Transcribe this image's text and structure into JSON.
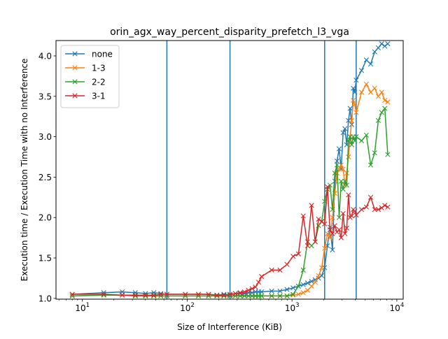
{
  "chart_data": {
    "type": "line",
    "title": "orin_agx_way_percent_disparity_prefetch_l3_vga",
    "xlabel": "Size of Interference (KiB)",
    "ylabel": "Execution time / Execution Time with no Interference",
    "xscale": "log",
    "xlim": [
      5.6,
      11500
    ],
    "ylim": [
      0.99,
      4.19
    ],
    "xticks": [
      {
        "value": 10,
        "base": "10",
        "exp": "1"
      },
      {
        "value": 100,
        "base": "10",
        "exp": "2"
      },
      {
        "value": 1000,
        "base": "10",
        "exp": "3"
      },
      {
        "value": 10000,
        "base": "10",
        "exp": "4"
      }
    ],
    "yticks": [
      {
        "value": 1.0,
        "label": "1.0"
      },
      {
        "value": 1.5,
        "label": "1.5"
      },
      {
        "value": 2.0,
        "label": "2.0"
      },
      {
        "value": 2.5,
        "label": "2.5"
      },
      {
        "value": 3.0,
        "label": "3.0"
      },
      {
        "value": 3.5,
        "label": "3.5"
      },
      {
        "value": 4.0,
        "label": "4.0"
      }
    ],
    "vlines": [
      64,
      256,
      2048,
      4096
    ],
    "vline_color": "#1f77b4",
    "grid": false,
    "legend_position": "upper-left",
    "marker": "x",
    "series": [
      {
        "name": "none",
        "color": "#1f77b4",
        "x": [
          8,
          16,
          24,
          32,
          40,
          48,
          56,
          64,
          96,
          128,
          160,
          192,
          224,
          256,
          288,
          320,
          352,
          384,
          416,
          448,
          480,
          512,
          640,
          768,
          896,
          1024,
          1152,
          1280,
          1408,
          1536,
          1664,
          1792,
          1920,
          2048,
          2176,
          2304,
          2432,
          2560,
          2688,
          2816,
          2944,
          3072,
          3200,
          3328,
          3456,
          3584,
          3712,
          3840,
          3968,
          4096,
          4608,
          5120,
          5632,
          6144,
          6656,
          7168,
          7680,
          8192
        ],
        "y": [
          1.05,
          1.07,
          1.08,
          1.07,
          1.06,
          1.07,
          1.06,
          1.05,
          1.05,
          1.05,
          1.05,
          1.04,
          1.05,
          1.04,
          1.06,
          1.06,
          1.06,
          1.07,
          1.07,
          1.08,
          1.08,
          1.08,
          1.09,
          1.09,
          1.11,
          1.13,
          1.15,
          1.17,
          1.19,
          1.21,
          1.23,
          1.25,
          1.28,
          1.38,
          1.65,
          1.88,
          1.6,
          2.45,
          2.7,
          2.85,
          2.6,
          3.05,
          3.1,
          2.9,
          3.2,
          3.35,
          3.15,
          3.6,
          3.55,
          3.7,
          3.82,
          3.95,
          3.9,
          4.05,
          4.1,
          4.15,
          4.12,
          4.15
        ]
      },
      {
        "name": "1-3",
        "color": "#ff7f0e",
        "x": [
          8,
          16,
          24,
          32,
          40,
          48,
          56,
          64,
          96,
          128,
          160,
          192,
          224,
          256,
          288,
          320,
          352,
          384,
          416,
          448,
          480,
          512,
          640,
          768,
          896,
          1024,
          1152,
          1280,
          1408,
          1536,
          1664,
          1792,
          1920,
          2048,
          2176,
          2304,
          2432,
          2560,
          2688,
          2816,
          2944,
          3072,
          3200,
          3328,
          3456,
          3584,
          3712,
          3840,
          3968,
          4096,
          4608,
          5120,
          5632,
          6144,
          6656,
          7168,
          7680,
          8192
        ],
        "y": [
          1.03,
          1.04,
          1.04,
          1.03,
          1.03,
          1.03,
          1.03,
          1.03,
          1.03,
          1.03,
          1.03,
          1.03,
          1.03,
          1.03,
          1.03,
          1.03,
          1.03,
          1.03,
          1.03,
          1.03,
          1.03,
          1.03,
          1.03,
          1.03,
          1.03,
          1.04,
          1.05,
          1.07,
          1.1,
          1.15,
          1.2,
          1.28,
          1.38,
          1.62,
          1.8,
          1.75,
          2.0,
          2.3,
          2.55,
          2.6,
          2.65,
          2.6,
          2.4,
          2.55,
          2.75,
          3.0,
          3.2,
          3.45,
          3.4,
          3.3,
          3.55,
          3.65,
          3.55,
          3.6,
          3.5,
          3.55,
          3.45,
          3.43
        ]
      },
      {
        "name": "2-2",
        "color": "#2ca02c",
        "x": [
          8,
          16,
          24,
          32,
          40,
          48,
          56,
          64,
          96,
          128,
          160,
          192,
          224,
          256,
          288,
          320,
          352,
          384,
          416,
          448,
          480,
          512,
          640,
          768,
          896,
          1024,
          1152,
          1280,
          1408,
          1536,
          1664,
          1792,
          1920,
          2048,
          2176,
          2304,
          2432,
          2560,
          2688,
          2816,
          2944,
          3072,
          3200,
          3328,
          3456,
          3584,
          3712,
          3840,
          3968,
          4096,
          4608,
          5120,
          5632,
          6144,
          6656,
          7168,
          7680,
          8192
        ],
        "y": [
          1.03,
          1.04,
          1.04,
          1.03,
          1.03,
          1.03,
          1.03,
          1.03,
          1.03,
          1.03,
          1.03,
          1.03,
          1.03,
          1.03,
          1.03,
          1.03,
          1.03,
          1.03,
          1.03,
          1.03,
          1.03,
          1.03,
          1.03,
          1.03,
          1.03,
          1.05,
          1.15,
          1.35,
          1.7,
          1.65,
          1.7,
          1.9,
          1.95,
          2.2,
          2.35,
          2.4,
          2.1,
          2.55,
          2.65,
          2.0,
          2.45,
          2.35,
          2.45,
          2.4,
          2.95,
          3.0,
          2.9,
          3.0,
          2.95,
          3.0,
          2.95,
          3.02,
          2.65,
          2.8,
          3.2,
          3.3,
          3.35,
          2.78
        ]
      },
      {
        "name": "3-1",
        "color": "#d62728",
        "x": [
          8,
          16,
          24,
          32,
          40,
          48,
          56,
          64,
          96,
          128,
          160,
          192,
          224,
          256,
          288,
          320,
          352,
          384,
          416,
          448,
          480,
          512,
          640,
          768,
          896,
          1024,
          1152,
          1280,
          1408,
          1536,
          1664,
          1792,
          1920,
          2048,
          2176,
          2304,
          2432,
          2560,
          2688,
          2816,
          2944,
          3072,
          3200,
          3328,
          3456,
          3584,
          3712,
          3840,
          3968,
          4096,
          4608,
          5120,
          5632,
          6144,
          6656,
          7168,
          7680,
          8192
        ],
        "y": [
          1.05,
          1.05,
          1.04,
          1.04,
          1.04,
          1.04,
          1.05,
          1.05,
          1.05,
          1.05,
          1.05,
          1.04,
          1.04,
          1.05,
          1.06,
          1.07,
          1.08,
          1.1,
          1.12,
          1.14,
          1.2,
          1.27,
          1.35,
          1.35,
          1.42,
          1.52,
          1.55,
          2.02,
          1.65,
          2.15,
          1.7,
          1.98,
          1.95,
          1.92,
          2.38,
          1.85,
          1.8,
          1.9,
          1.82,
          1.85,
          1.75,
          2.05,
          1.8,
          1.87,
          2.28,
          2.0,
          2.02,
          2.1,
          2.08,
          2.03,
          2.1,
          2.13,
          2.25,
          2.1,
          2.1,
          2.12,
          2.15,
          2.13
        ]
      }
    ]
  }
}
